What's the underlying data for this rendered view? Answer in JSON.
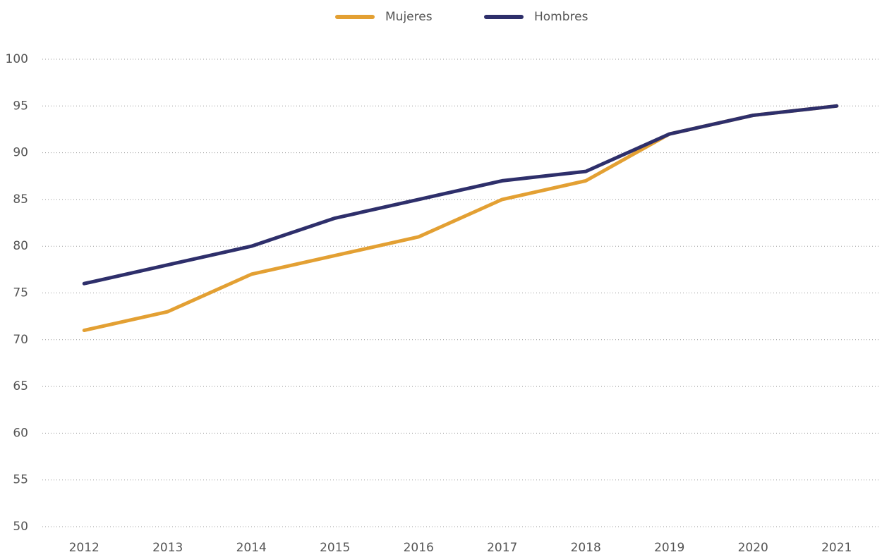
{
  "chart_data": {
    "type": "line",
    "categories": [
      "2012",
      "2013",
      "2014",
      "2015",
      "2016",
      "2017",
      "2018",
      "2019",
      "2020",
      "2021"
    ],
    "series": [
      {
        "name": "Mujeres",
        "color": "#e3a033",
        "values": [
          71,
          73,
          77,
          79,
          81,
          85,
          87,
          92,
          94,
          95
        ]
      },
      {
        "name": "Hombres",
        "color": "#2e2f6b",
        "values": [
          76,
          78,
          80,
          83,
          85,
          87,
          88,
          92,
          94,
          95
        ]
      }
    ],
    "ylim": [
      50,
      100
    ],
    "yticks": [
      50,
      55,
      60,
      65,
      70,
      75,
      80,
      85,
      90,
      95,
      100
    ],
    "grid": true,
    "legend": "top"
  }
}
